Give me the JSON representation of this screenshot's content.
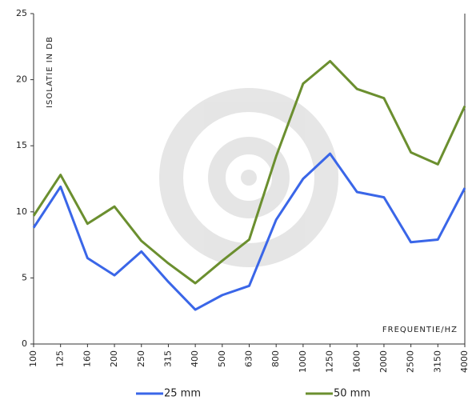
{
  "chart_data": {
    "type": "line",
    "x_label": "FREQUENTIE/HZ",
    "y_label": "ISOLATIE IN DB",
    "categories": [
      "100",
      "125",
      "160",
      "200",
      "250",
      "315",
      "400",
      "500",
      "630",
      "800",
      "1000",
      "1250",
      "1600",
      "2000",
      "2500",
      "3150",
      "4000"
    ],
    "series": [
      {
        "name": "25 mm",
        "color": "#3a66e8",
        "values": [
          8.8,
          11.9,
          6.5,
          5.2,
          7.0,
          4.7,
          2.6,
          3.7,
          4.4,
          9.4,
          12.5,
          14.4,
          11.5,
          11.1,
          7.7,
          7.9,
          11.8
        ]
      },
      {
        "name": "50 mm",
        "color": "#6b8f2f",
        "values": [
          9.7,
          12.8,
          9.1,
          10.4,
          7.8,
          6.1,
          4.6,
          6.3,
          7.9,
          14.2,
          19.7,
          21.4,
          19.3,
          18.6,
          14.5,
          13.6,
          18.0
        ]
      }
    ],
    "ylim": [
      0,
      25
    ],
    "yticks": [
      0,
      5,
      10,
      15,
      20,
      25
    ],
    "grid": false,
    "legend": "bottom"
  }
}
